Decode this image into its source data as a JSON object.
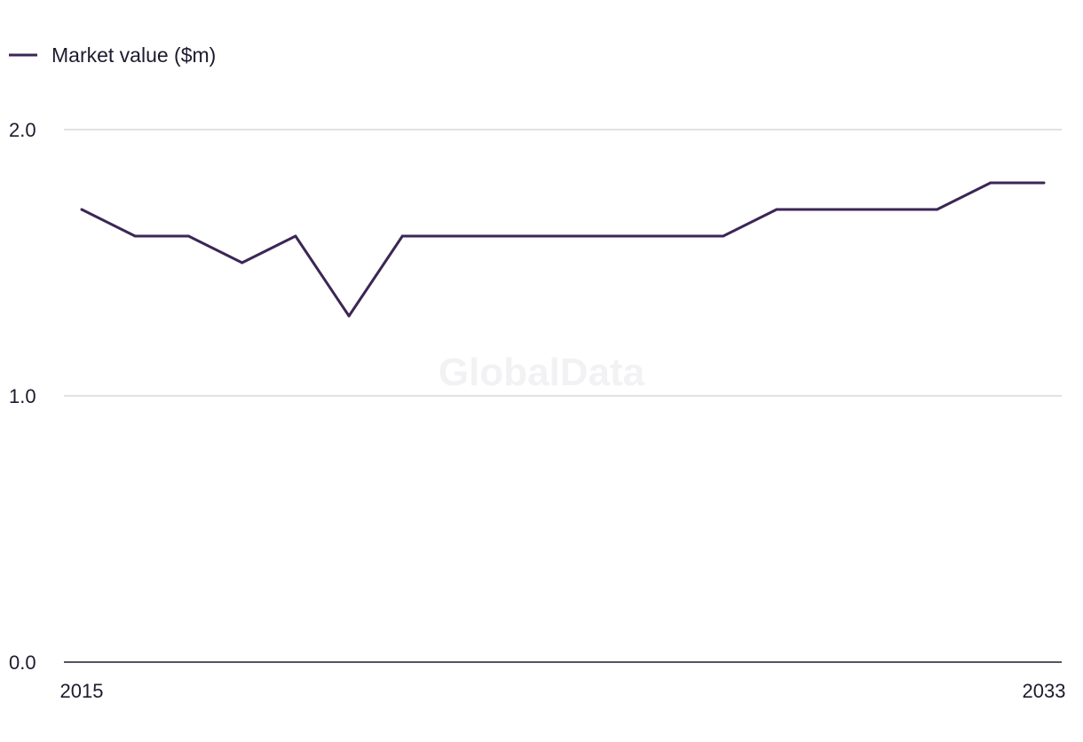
{
  "watermark": "GlobalData",
  "chart_data": {
    "type": "line",
    "x": [
      2015,
      2016,
      2017,
      2018,
      2019,
      2020,
      2021,
      2022,
      2023,
      2024,
      2025,
      2026,
      2027,
      2028,
      2029,
      2030,
      2031,
      2032,
      2033
    ],
    "series": [
      {
        "name": "Market value ($m)",
        "color": "#3b2656",
        "values": [
          1.7,
          1.6,
          1.6,
          1.5,
          1.6,
          1.3,
          1.6,
          1.6,
          1.6,
          1.6,
          1.6,
          1.6,
          1.6,
          1.7,
          1.7,
          1.7,
          1.7,
          1.8,
          1.8
        ]
      }
    ],
    "x_tick_labels": [
      "2015",
      "2033"
    ],
    "y_ticks": [
      0.0,
      1.0,
      2.0
    ],
    "y_tick_labels": [
      "0.0",
      "1.0",
      "2.0"
    ],
    "ylim": [
      0,
      2
    ],
    "title": "",
    "xlabel": "",
    "ylabel": "",
    "grid": true,
    "legend_position": "top-left"
  }
}
